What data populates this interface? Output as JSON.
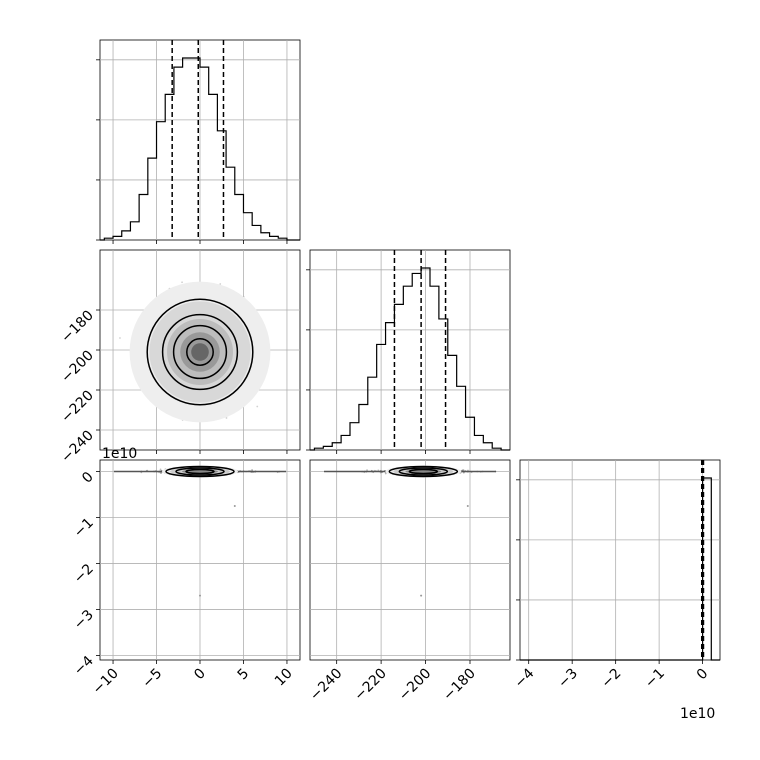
{
  "chart_data": {
    "type": "corner",
    "grid": true,
    "panels": [
      {
        "row": 0,
        "col": 0,
        "kind": "histogram",
        "xlim": [
          -11.5,
          11.5
        ],
        "quantile_lines": [
          -3.2,
          -0.2,
          2.7
        ],
        "bin_edges": [
          -11.0,
          -10.0,
          -9.0,
          -8.0,
          -7.0,
          -6.0,
          -5.0,
          -4.0,
          -3.0,
          -2.0,
          -1.0,
          0.0,
          1.0,
          2.0,
          3.0,
          4.0,
          5.0,
          6.0,
          7.0,
          8.0,
          9.0,
          10.0
        ],
        "counts": [
          1,
          2,
          5,
          10,
          25,
          45,
          65,
          80,
          95,
          100,
          100,
          95,
          80,
          60,
          40,
          25,
          15,
          8,
          4,
          2,
          1
        ]
      },
      {
        "row": 1,
        "col": 0,
        "kind": "2d-density",
        "xlim": [
          -11.5,
          11.5
        ],
        "ylim": [
          -250,
          -150
        ],
        "center": [
          0,
          -201
        ],
        "y_ticks": [
          -180,
          -200,
          -220,
          -240
        ],
        "contour_half_widths_x": [
          6.1,
          4.6,
          3.3,
          1.7,
          0.6
        ],
        "contour_half_widths_y": [
          19,
          14,
          10,
          5,
          2
        ]
      },
      {
        "row": 1,
        "col": 1,
        "kind": "histogram",
        "xlim": [
          -252,
          -162
        ],
        "quantile_lines": [
          -214,
          -202,
          -191
        ],
        "bin_edges": [
          -250,
          -246,
          -242,
          -238,
          -234,
          -230,
          -226,
          -222,
          -218,
          -214,
          -210,
          -206,
          -202,
          -198,
          -194,
          -190,
          -186,
          -182,
          -178,
          -174,
          -170,
          -166
        ],
        "counts": [
          1,
          2,
          4,
          8,
          15,
          25,
          40,
          58,
          70,
          80,
          90,
          97,
          100,
          90,
          72,
          52,
          35,
          18,
          8,
          4,
          1
        ]
      },
      {
        "row": 2,
        "col": 0,
        "kind": "2d-density",
        "xlim": [
          -11.5,
          11.5
        ],
        "ylim": [
          -4.1,
          0.25
        ],
        "center": [
          0,
          0
        ],
        "y_ticks": [
          0,
          -1,
          -2,
          -3,
          -4
        ],
        "outliers": [
          [
            4,
            -0.75
          ],
          [
            0,
            -2.7
          ]
        ]
      },
      {
        "row": 2,
        "col": 1,
        "kind": "2d-density",
        "xlim": [
          -252,
          -162
        ],
        "ylim": [
          -4.1,
          0.25
        ],
        "center": [
          -201,
          0
        ],
        "outliers": [
          [
            -181,
            -0.75
          ],
          [
            -202,
            -2.7
          ]
        ]
      },
      {
        "row": 2,
        "col": 2,
        "kind": "histogram",
        "xlim": [
          -4.2,
          0.4
        ],
        "quantile_lines": [
          -0.02,
          0.0,
          0.02
        ],
        "bin_edges": [
          0.0,
          0.2
        ],
        "counts": [
          100
        ]
      }
    ],
    "axes": {
      "x_ticks": [
        [
          "−10",
          "−5",
          "0",
          "5",
          "10"
        ],
        [
          "−240",
          "−220",
          "−200",
          "−180"
        ],
        [
          "−4",
          "−3",
          "−2",
          "−1",
          "0"
        ]
      ],
      "y_ticks": {
        "row1": [
          "−180",
          "−200",
          "−220",
          "−240"
        ],
        "row2": [
          "0",
          "−1",
          "−2",
          "−3",
          "−4"
        ]
      },
      "offset_label_y": "1e10",
      "offset_label_x": "1e10"
    }
  }
}
